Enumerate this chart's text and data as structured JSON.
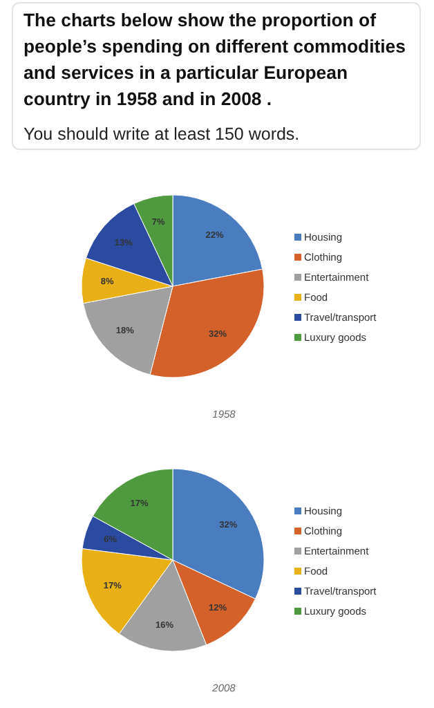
{
  "chart_data": [
    {
      "type": "pie",
      "title": "The charts below show the proportion of people’s spending on different commodities and services in a particular European country in 1958 and in 2008 .",
      "subtitle": "You should write at least 150 words.",
      "annotations": [
        "1958"
      ],
      "categories": [
        "Housing",
        "Clothing",
        "Entertainment",
        "Food",
        "Travel/transport",
        "Luxury goods"
      ],
      "values": [
        22,
        32,
        18,
        8,
        13,
        7
      ],
      "value_labels": [
        "22%",
        "32%",
        "18%",
        "8%",
        "13%",
        "7%"
      ],
      "colors": [
        "#4a7cc0",
        "#d4602a",
        "#a0a0a0",
        "#e8b015",
        "#2a4ba0",
        "#4f9a3e"
      ],
      "legend": "right"
    },
    {
      "type": "pie",
      "annotations": [
        "2008"
      ],
      "categories": [
        "Housing",
        "Clothing",
        "Entertainment",
        "Food",
        "Travel/transport",
        "Luxury goods"
      ],
      "values": [
        32,
        12,
        16,
        17,
        6,
        17
      ],
      "value_labels": [
        "32%",
        "12%",
        "16%",
        "17%",
        "6%",
        "17%"
      ],
      "colors": [
        "#4a7cc0",
        "#d4602a",
        "#a0a0a0",
        "#e8b015",
        "#2a4ba0",
        "#4f9a3e"
      ],
      "legend": "right"
    }
  ]
}
